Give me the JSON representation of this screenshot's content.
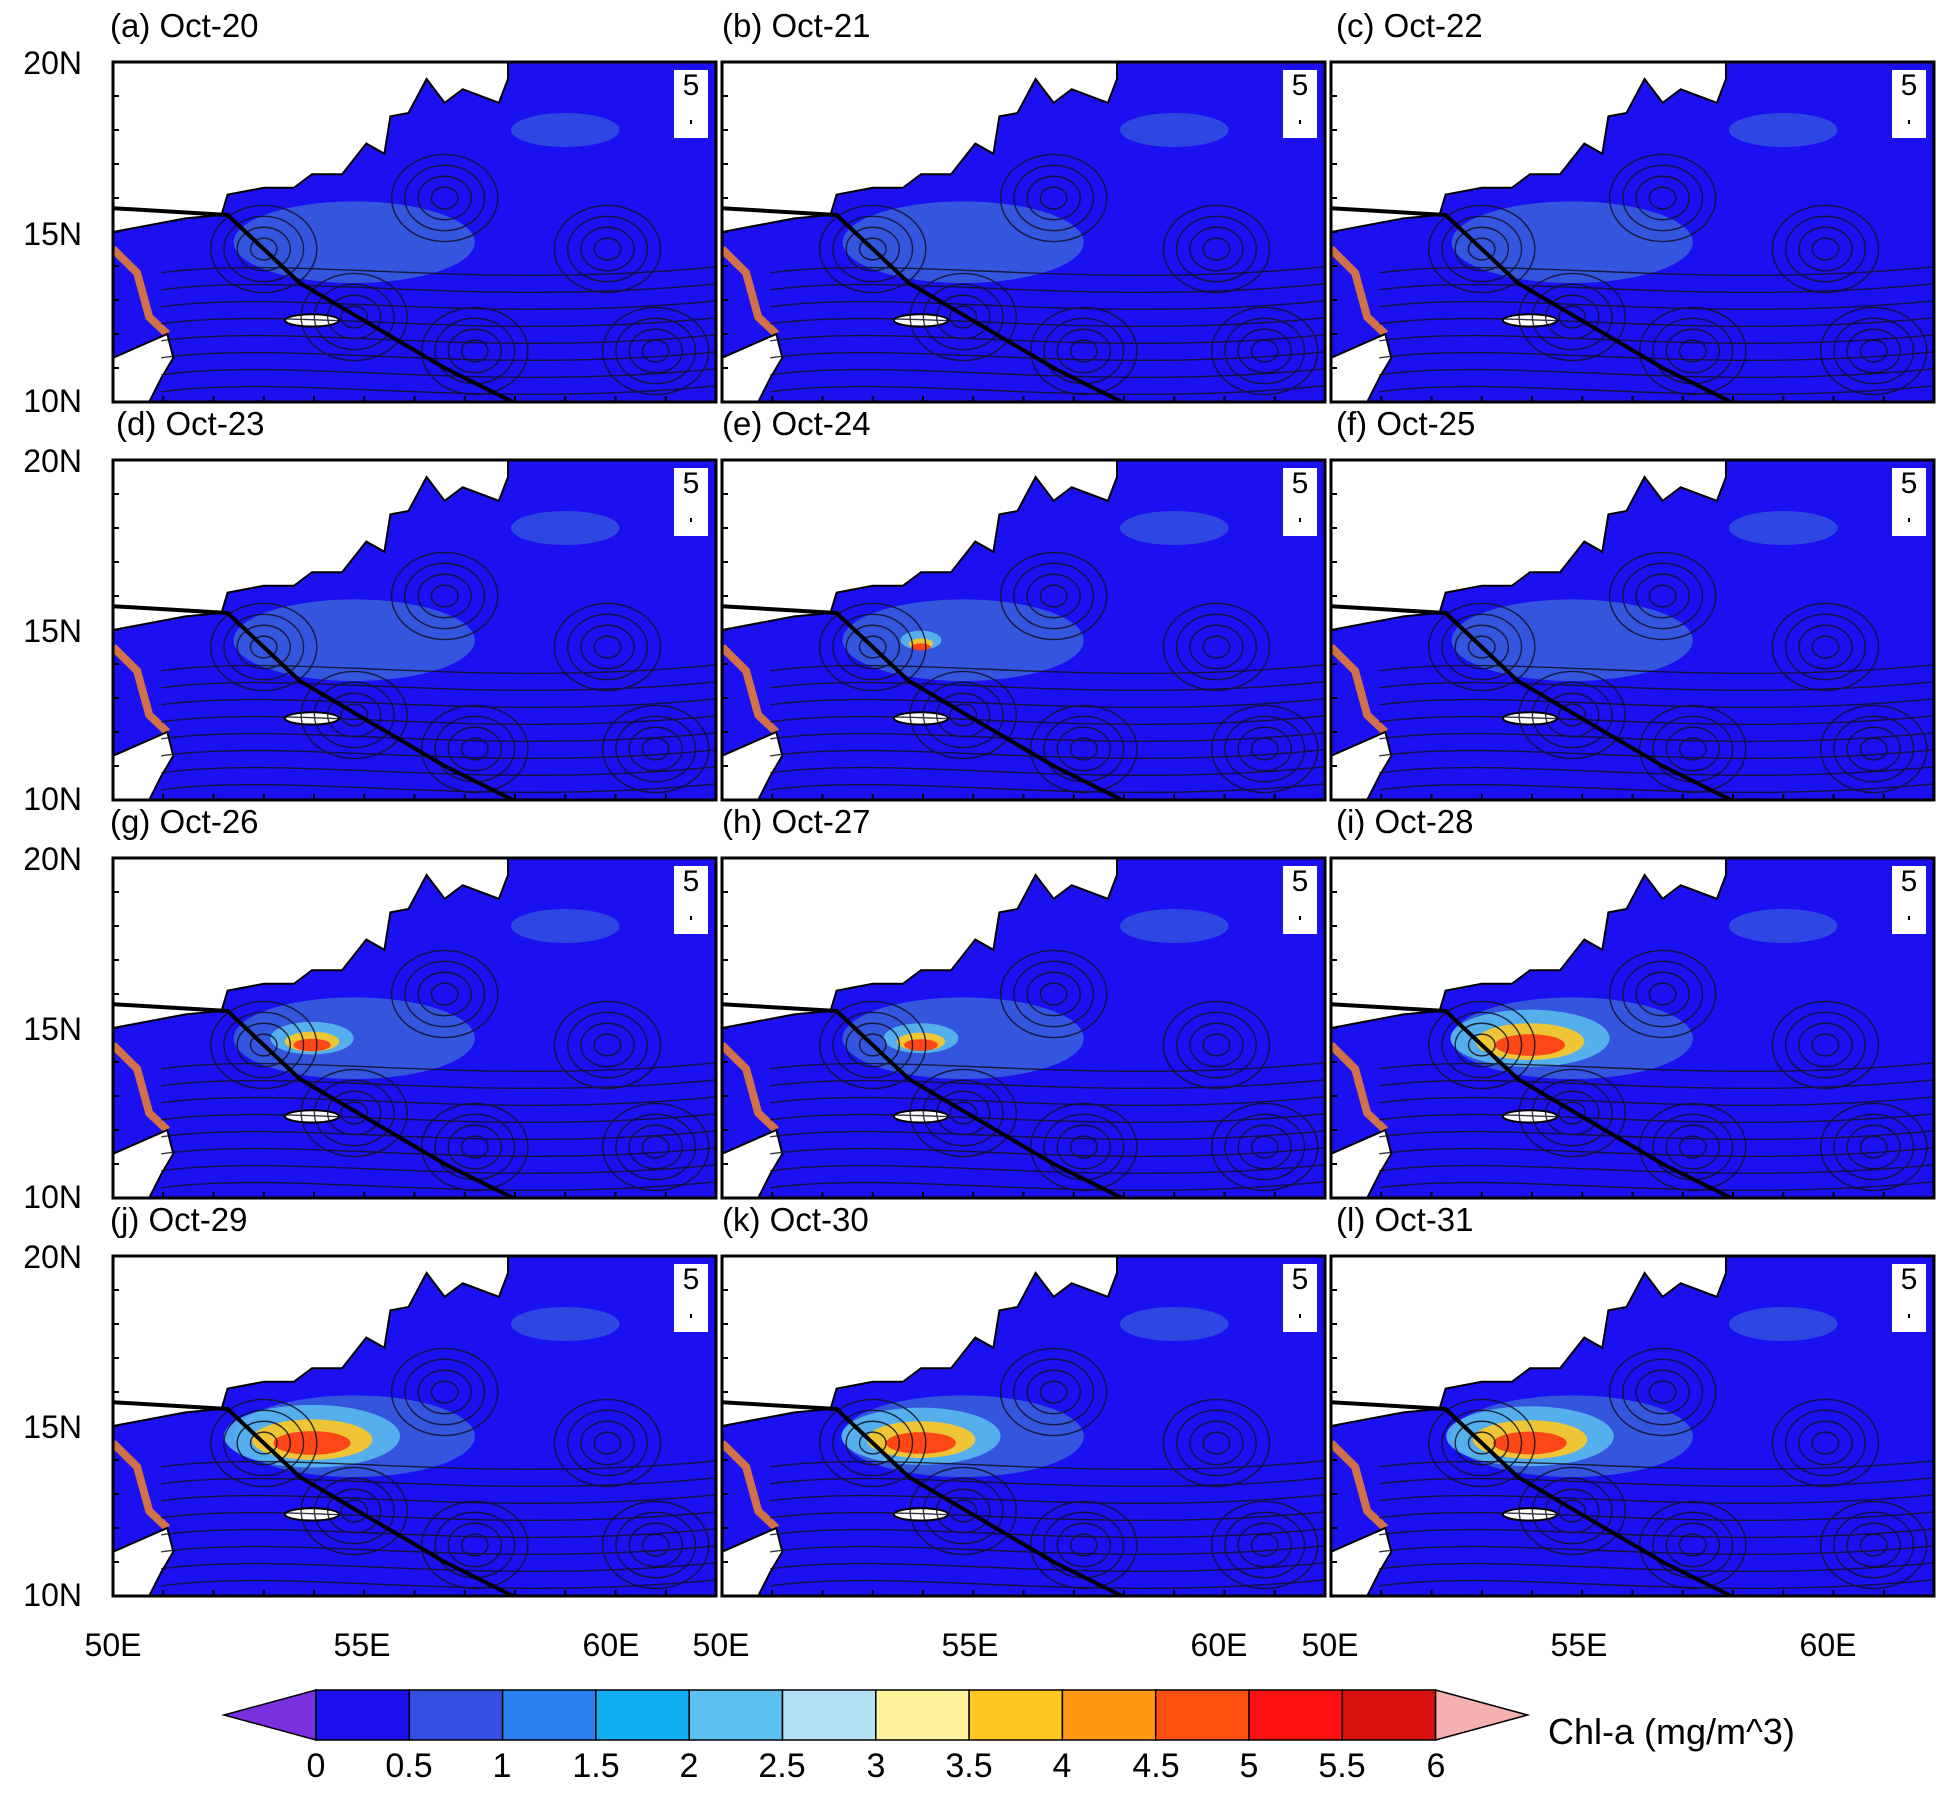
{
  "figure": {
    "panels": [
      {
        "label": "(a) Oct-20",
        "bloom": 0
      },
      {
        "label": "(b) Oct-21",
        "bloom": 0
      },
      {
        "label": "(c) Oct-22",
        "bloom": 0
      },
      {
        "label": "(d) Oct-23",
        "bloom": 0
      },
      {
        "label": "(e) Oct-24",
        "bloom": 0.1
      },
      {
        "label": "(f) Oct-25",
        "bloom": 0
      },
      {
        "label": "(g) Oct-26",
        "bloom": 0.35
      },
      {
        "label": "(h) Oct-27",
        "bloom": 0.3
      },
      {
        "label": "(i) Oct-28",
        "bloom": 0.8
      },
      {
        "label": "(j) Oct-29",
        "bloom": 0.9
      },
      {
        "label": "(k) Oct-30",
        "bloom": 0.8
      },
      {
        "label": "(l) Oct-31",
        "bloom": 0.85
      }
    ],
    "lat_ticks": [
      "20N",
      "15N",
      "10N"
    ],
    "lon_ticks": [
      "50E",
      "55E",
      "60E"
    ],
    "reference_vector": "5",
    "colorbar": {
      "title": "Chl-a (mg/m^3)",
      "tick_labels": [
        "0",
        "0.5",
        "1",
        "1.5",
        "2",
        "2.5",
        "3",
        "3.5",
        "4",
        "4.5",
        "5",
        "5.5",
        "6"
      ],
      "colors": [
        "#1a10f0",
        "#3350e0",
        "#2a80f0",
        "#10b0f0",
        "#5cc0f0",
        "#b4e0f5",
        "#fff3a0",
        "#ffc820",
        "#ff9a10",
        "#ff5010",
        "#ff1010",
        "#d81010",
        "#f5b0b0"
      ],
      "under_color": "#7a30e0",
      "over_color": "#f5b0b0"
    }
  }
}
